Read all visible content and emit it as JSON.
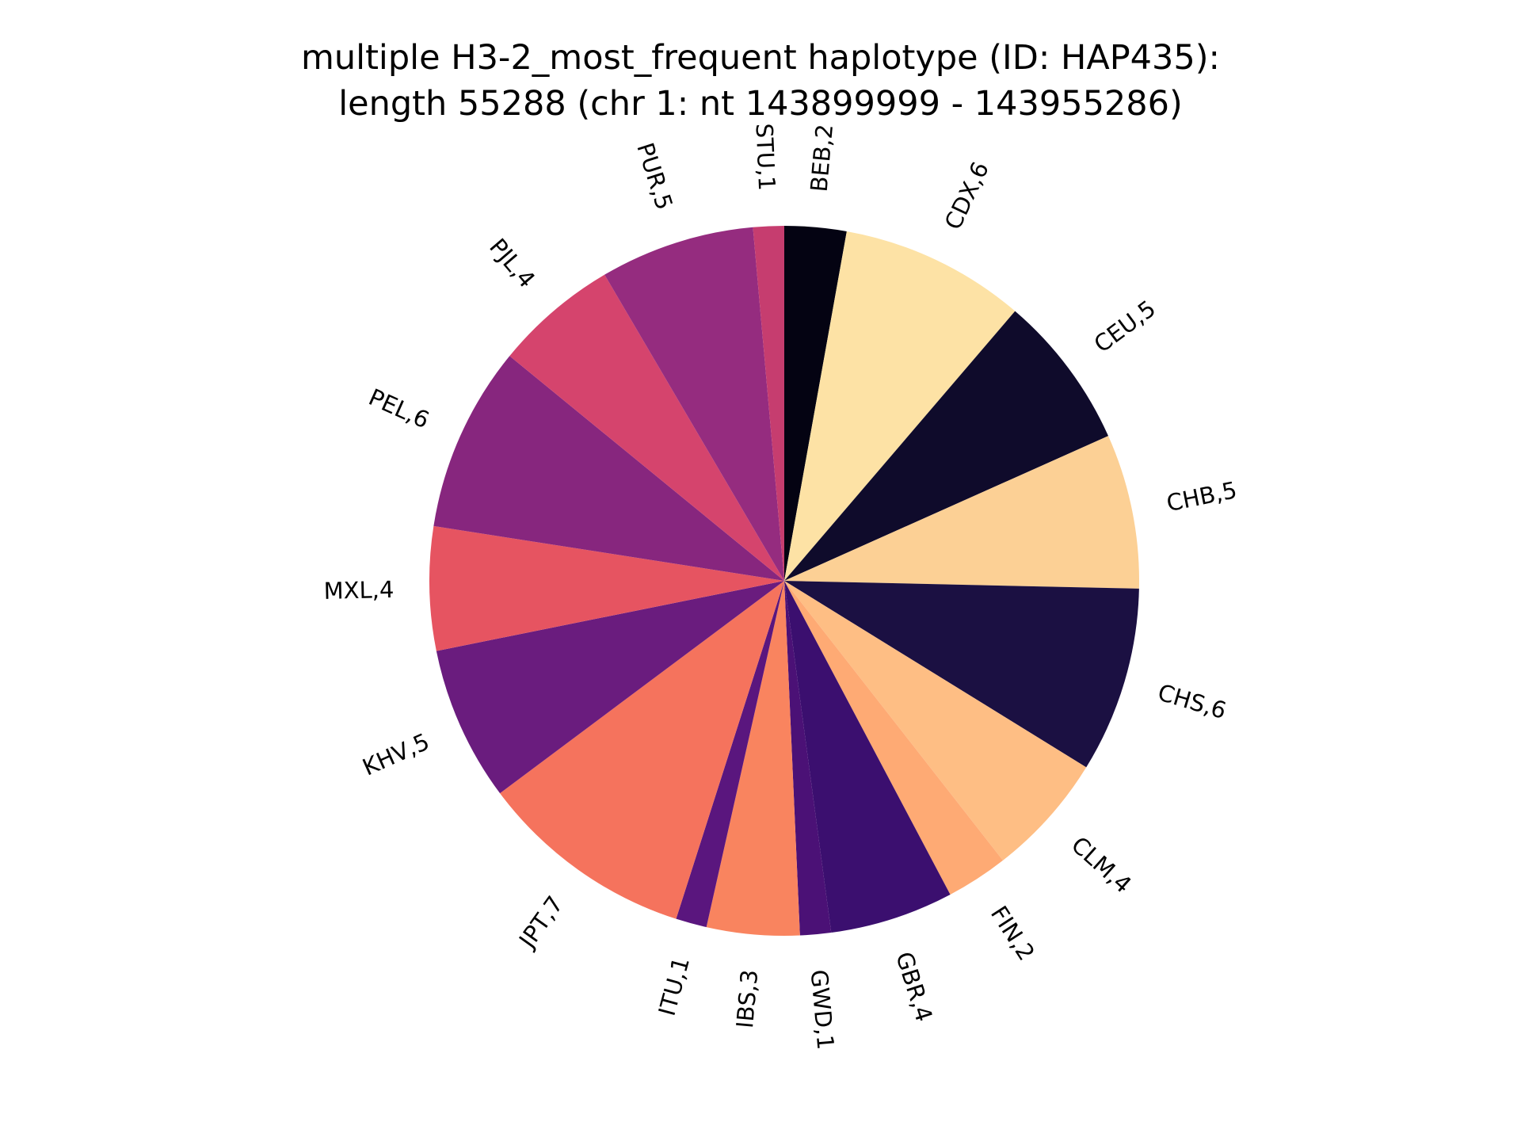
{
  "chart_data": {
    "type": "pie",
    "title_lines": [
      "multiple H3-2_most_frequent haplotype (ID: HAP435):",
      "length 55288 (chr 1: nt 143899999 - 143955286)"
    ],
    "start_angle_deg": 90,
    "direction": "clockwise",
    "slices": [
      {
        "label": "BEB,2",
        "value": 2,
        "color": "#040312"
      },
      {
        "label": "CDX,6",
        "value": 6,
        "color": "#fde2a5"
      },
      {
        "label": "CEU,5",
        "value": 5,
        "color": "#0f0b2b"
      },
      {
        "label": "CHB,5",
        "value": 5,
        "color": "#fcd095"
      },
      {
        "label": "CHS,6",
        "value": 6,
        "color": "#1b1042"
      },
      {
        "label": "CLM,4",
        "value": 4,
        "color": "#febe84"
      },
      {
        "label": "FIN,2",
        "value": 2,
        "color": "#feaa74"
      },
      {
        "label": "GBR,4",
        "value": 4,
        "color": "#3b0f6f"
      },
      {
        "label": "GWD,1",
        "value": 1,
        "color": "#4b1176"
      },
      {
        "label": "IBS,3",
        "value": 3,
        "color": "#f9845f"
      },
      {
        "label": "ITU,1",
        "value": 1,
        "color": "#5a167e"
      },
      {
        "label": "JPT,7",
        "value": 7,
        "color": "#f5735d"
      },
      {
        "label": "KHV,5",
        "value": 5,
        "color": "#6a1c7e"
      },
      {
        "label": "MXL,4",
        "value": 4,
        "color": "#e65461"
      },
      {
        "label": "PEL,6",
        "value": 6,
        "color": "#87267e"
      },
      {
        "label": "PJL,4",
        "value": 4,
        "color": "#d5446d"
      },
      {
        "label": "PUR,5",
        "value": 5,
        "color": "#952c7f"
      },
      {
        "label": "STU,1",
        "value": 1,
        "color": "#c63d6f"
      }
    ]
  }
}
